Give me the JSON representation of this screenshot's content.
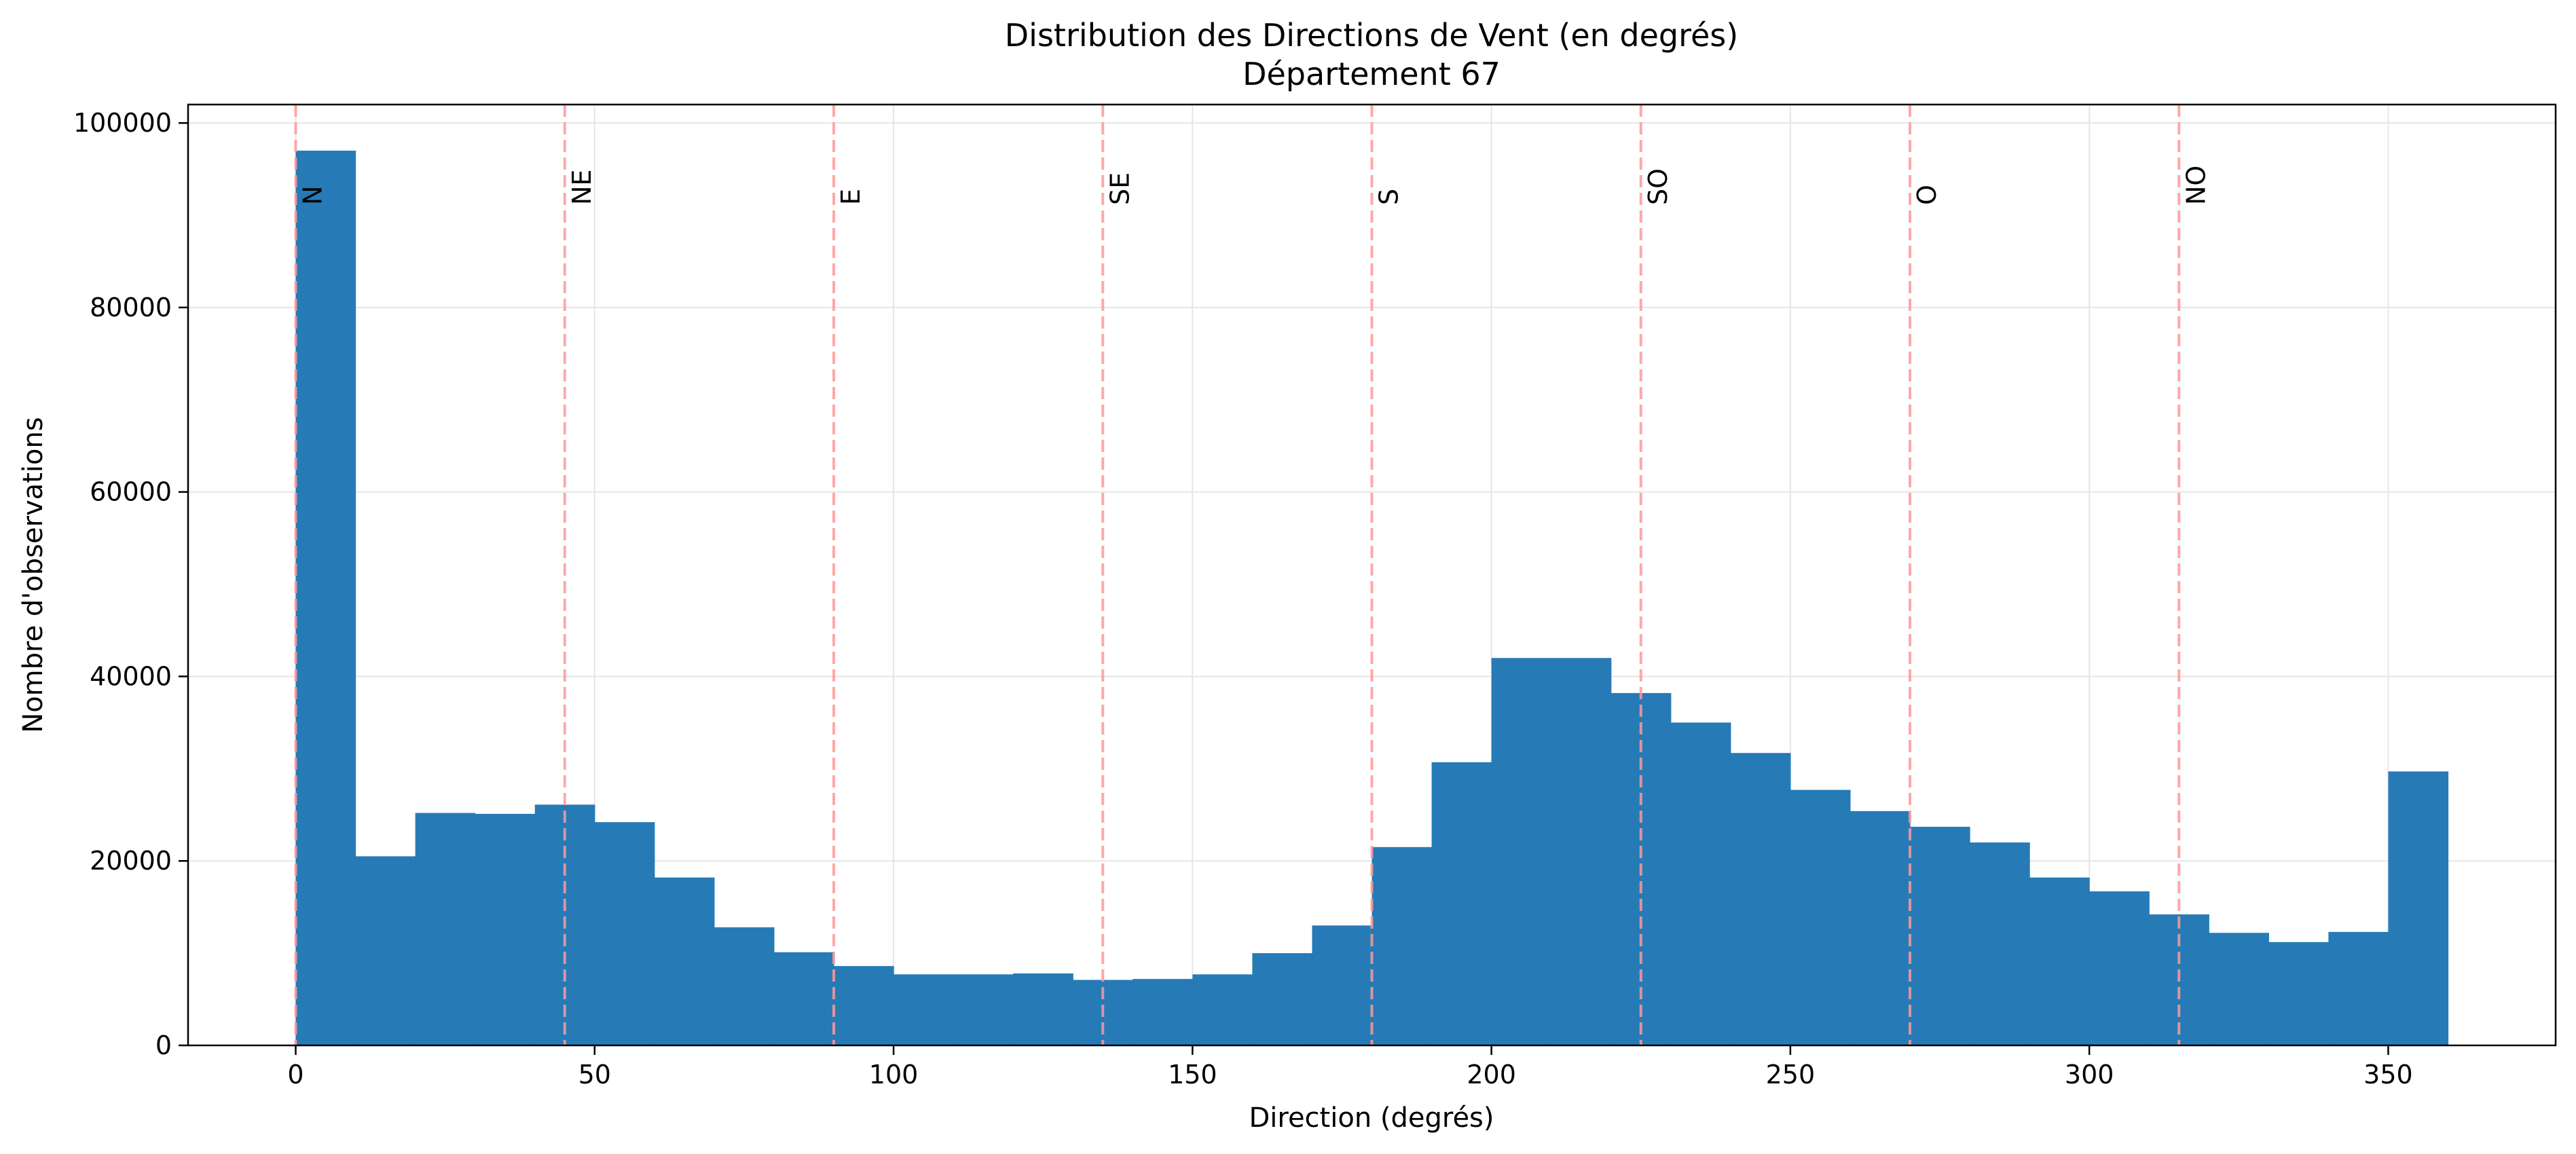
{
  "chart_data": {
    "type": "bar",
    "title": "Distribution des Directions de Vent (en degrés)",
    "subtitle": "Département 67",
    "xlabel": "Direction (degrés)",
    "ylabel": "Nombre d'observations",
    "xlim": [
      -18,
      378
    ],
    "ylim": [
      0,
      102000
    ],
    "xticks": [
      0,
      50,
      100,
      150,
      200,
      250,
      300,
      350
    ],
    "yticks": [
      0,
      20000,
      40000,
      60000,
      80000,
      100000
    ],
    "grid": true,
    "bin_width": 10,
    "bins": [
      {
        "start": 0,
        "value": 97000
      },
      {
        "start": 10,
        "value": 20500
      },
      {
        "start": 20,
        "value": 25200
      },
      {
        "start": 30,
        "value": 25100
      },
      {
        "start": 40,
        "value": 26100
      },
      {
        "start": 50,
        "value": 24200
      },
      {
        "start": 60,
        "value": 18200
      },
      {
        "start": 70,
        "value": 12800
      },
      {
        "start": 80,
        "value": 10100
      },
      {
        "start": 90,
        "value": 8600
      },
      {
        "start": 100,
        "value": 7700
      },
      {
        "start": 110,
        "value": 7700
      },
      {
        "start": 120,
        "value": 7800
      },
      {
        "start": 130,
        "value": 7100
      },
      {
        "start": 140,
        "value": 7200
      },
      {
        "start": 150,
        "value": 7700
      },
      {
        "start": 160,
        "value": 10000
      },
      {
        "start": 170,
        "value": 13000
      },
      {
        "start": 180,
        "value": 21500
      },
      {
        "start": 190,
        "value": 30700
      },
      {
        "start": 200,
        "value": 42000
      },
      {
        "start": 210,
        "value": 42000
      },
      {
        "start": 220,
        "value": 38200
      },
      {
        "start": 230,
        "value": 35000
      },
      {
        "start": 240,
        "value": 31700
      },
      {
        "start": 250,
        "value": 27700
      },
      {
        "start": 260,
        "value": 25400
      },
      {
        "start": 270,
        "value": 23700
      },
      {
        "start": 280,
        "value": 22000
      },
      {
        "start": 290,
        "value": 18200
      },
      {
        "start": 300,
        "value": 16700
      },
      {
        "start": 310,
        "value": 14200
      },
      {
        "start": 320,
        "value": 12200
      },
      {
        "start": 330,
        "value": 11200
      },
      {
        "start": 340,
        "value": 12300
      },
      {
        "start": 350,
        "value": 29700
      }
    ],
    "directions": [
      {
        "label": "N",
        "angle": 0
      },
      {
        "label": "NE",
        "angle": 45
      },
      {
        "label": "E",
        "angle": 90
      },
      {
        "label": "SE",
        "angle": 135
      },
      {
        "label": "S",
        "angle": 180
      },
      {
        "label": "SO",
        "angle": 225
      },
      {
        "label": "O",
        "angle": 270
      },
      {
        "label": "NO",
        "angle": 315
      }
    ],
    "colors": {
      "bar": "#1f77b4",
      "direction_line": "#ff9999",
      "grid": "#e6e6e6",
      "axis": "#000000"
    }
  }
}
